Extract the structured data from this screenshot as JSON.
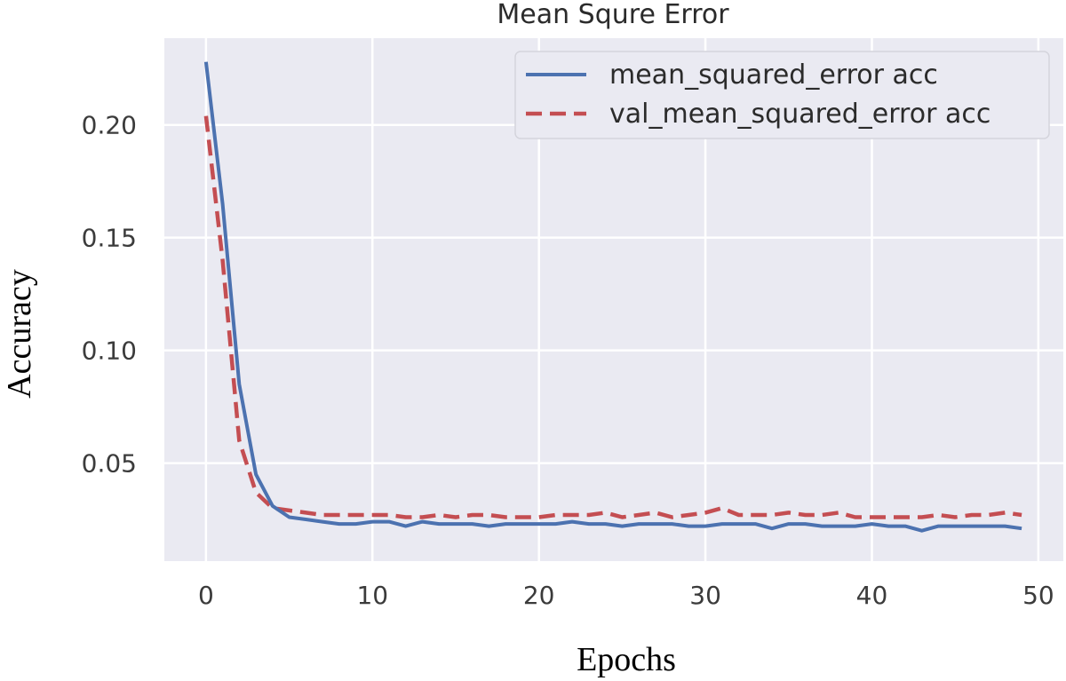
{
  "chart_data": {
    "type": "line",
    "title": "Mean Squre Error",
    "xlabel": "Epochs",
    "ylabel": "Accuracy",
    "xlim": [
      -2.5,
      51.5
    ],
    "ylim": [
      0.0065,
      0.2385
    ],
    "xticks": [
      0,
      10,
      20,
      30,
      40,
      50
    ],
    "xtick_labels": [
      "0",
      "10",
      "20",
      "30",
      "40",
      "50"
    ],
    "yticks": [
      0.05,
      0.1,
      0.15,
      0.2
    ],
    "ytick_labels": [
      "0.05",
      "0.10",
      "0.15",
      "0.20"
    ],
    "grid": true,
    "legend_position": "top-right",
    "x": [
      0,
      1,
      2,
      3,
      4,
      5,
      6,
      7,
      8,
      9,
      10,
      11,
      12,
      13,
      14,
      15,
      16,
      17,
      18,
      19,
      20,
      21,
      22,
      23,
      24,
      25,
      26,
      27,
      28,
      29,
      30,
      31,
      32,
      33,
      34,
      35,
      36,
      37,
      38,
      39,
      40,
      41,
      42,
      43,
      44,
      45,
      46,
      47,
      48,
      49
    ],
    "series": [
      {
        "name": "mean_squared_error acc",
        "style": "solid",
        "color": "#4c72b0",
        "values": [
          0.228,
          0.165,
          0.085,
          0.045,
          0.031,
          0.026,
          0.025,
          0.024,
          0.023,
          0.023,
          0.024,
          0.024,
          0.022,
          0.024,
          0.023,
          0.023,
          0.023,
          0.022,
          0.023,
          0.023,
          0.023,
          0.023,
          0.024,
          0.023,
          0.023,
          0.022,
          0.023,
          0.023,
          0.023,
          0.022,
          0.022,
          0.023,
          0.023,
          0.023,
          0.021,
          0.023,
          0.023,
          0.022,
          0.022,
          0.022,
          0.023,
          0.022,
          0.022,
          0.02,
          0.022,
          0.022,
          0.022,
          0.022,
          0.022,
          0.021
        ]
      },
      {
        "name": "val_mean_squared_error acc",
        "style": "dashed",
        "color": "#c44e52",
        "values": [
          0.204,
          0.14,
          0.06,
          0.037,
          0.03,
          0.029,
          0.028,
          0.027,
          0.027,
          0.027,
          0.027,
          0.027,
          0.026,
          0.026,
          0.027,
          0.026,
          0.027,
          0.027,
          0.026,
          0.026,
          0.026,
          0.027,
          0.027,
          0.027,
          0.028,
          0.026,
          0.027,
          0.028,
          0.026,
          0.027,
          0.028,
          0.03,
          0.027,
          0.027,
          0.027,
          0.028,
          0.027,
          0.027,
          0.028,
          0.026,
          0.026,
          0.026,
          0.026,
          0.026,
          0.027,
          0.026,
          0.027,
          0.027,
          0.028,
          0.027
        ]
      }
    ]
  },
  "colors": {
    "plot_background": "#eaeaf2",
    "grid": "#ffffff"
  }
}
